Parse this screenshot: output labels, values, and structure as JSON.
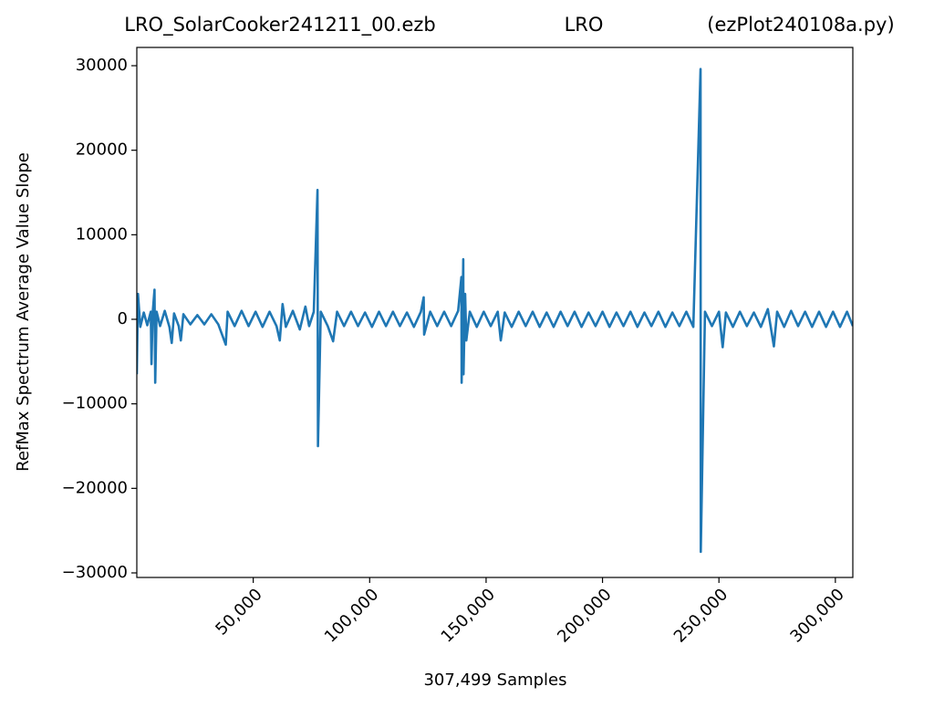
{
  "chart_data": {
    "type": "line",
    "title": [
      "LRO_SolarCooker241211_00.ezb",
      "LRO",
      "(ezPlot240108a.py)"
    ],
    "xlabel": "307,499 Samples",
    "ylabel": "RefMax Spectrum Average Value Slope",
    "xlim": [
      0,
      307499
    ],
    "ylim": [
      -30540,
      32160
    ],
    "xticks": [
      {
        "value": 50000,
        "label": "50,000"
      },
      {
        "value": 100000,
        "label": "100,000"
      },
      {
        "value": 150000,
        "label": "150,000"
      },
      {
        "value": 200000,
        "label": "200,000"
      },
      {
        "value": 250000,
        "label": "250,000"
      },
      {
        "value": 300000,
        "label": "300,000"
      }
    ],
    "yticks": [
      {
        "value": -30000,
        "label": "−30000"
      },
      {
        "value": -20000,
        "label": "−20000"
      },
      {
        "value": -10000,
        "label": "−10000"
      },
      0,
      10000,
      20000,
      30000
    ],
    "color": "#1f77b4",
    "x": [
      0,
      500,
      1500,
      3000,
      4500,
      6000,
      6300,
      6800,
      7600,
      7900,
      8500,
      10000,
      12000,
      14000,
      15000,
      16000,
      18000,
      18900,
      20000,
      23000,
      26000,
      29000,
      32000,
      35000,
      38200,
      39000,
      42000,
      45000,
      48000,
      51000,
      54000,
      57000,
      60000,
      61400,
      62600,
      64000,
      67000,
      70000,
      72400,
      74000,
      76000,
      77600,
      77800,
      79000,
      82000,
      84300,
      86000,
      89000,
      92000,
      95000,
      98000,
      101000,
      104000,
      107000,
      110000,
      113000,
      116000,
      119000,
      122000,
      123200,
      123400,
      126000,
      129000,
      132000,
      135000,
      138000,
      139400,
      139500,
      140200,
      140300,
      141000,
      141500,
      143000,
      146000,
      149000,
      152000,
      155000,
      156300,
      158000,
      161000,
      164000,
      167000,
      170000,
      173000,
      176000,
      179000,
      182000,
      185000,
      188000,
      191000,
      194000,
      197000,
      200000,
      203000,
      206000,
      209000,
      212000,
      215000,
      218000,
      221000,
      224000,
      227000,
      230000,
      233000,
      236000,
      239000,
      242100,
      242200,
      244000,
      247000,
      250000,
      251600,
      253000,
      256000,
      259000,
      262000,
      265000,
      268000,
      271000,
      273600,
      275000,
      278000,
      281000,
      284000,
      287000,
      290000,
      293000,
      296000,
      299000,
      302000,
      305000,
      307499
    ],
    "y": [
      -6500,
      3000,
      -900,
      800,
      -700,
      900,
      -5300,
      700,
      3500,
      -7500,
      900,
      -800,
      1000,
      -900,
      -2800,
      700,
      -800,
      -2500,
      600,
      -600,
      500,
      -600,
      600,
      -600,
      -3000,
      900,
      -800,
      1000,
      -800,
      900,
      -900,
      900,
      -800,
      -2500,
      1800,
      -900,
      1000,
      -1200,
      1500,
      -800,
      900,
      15300,
      -15000,
      900,
      -800,
      -2600,
      900,
      -800,
      900,
      -800,
      800,
      -900,
      900,
      -800,
      900,
      -800,
      800,
      -900,
      900,
      2600,
      -1800,
      900,
      -800,
      900,
      -800,
      1000,
      5000,
      -7500,
      7100,
      -6500,
      3000,
      -2500,
      900,
      -900,
      900,
      -800,
      900,
      -2500,
      800,
      -900,
      900,
      -800,
      900,
      -900,
      800,
      -900,
      900,
      -800,
      900,
      -900,
      800,
      -800,
      900,
      -900,
      800,
      -800,
      900,
      -900,
      800,
      -800,
      900,
      -900,
      800,
      -800,
      900,
      -900,
      29600,
      -27500,
      900,
      -800,
      900,
      -3300,
      800,
      -900,
      900,
      -800,
      800,
      -900,
      1200,
      -3200,
      900,
      -900,
      1000,
      -800,
      900,
      -900,
      900,
      -900,
      900,
      -900,
      900,
      -800
    ]
  }
}
